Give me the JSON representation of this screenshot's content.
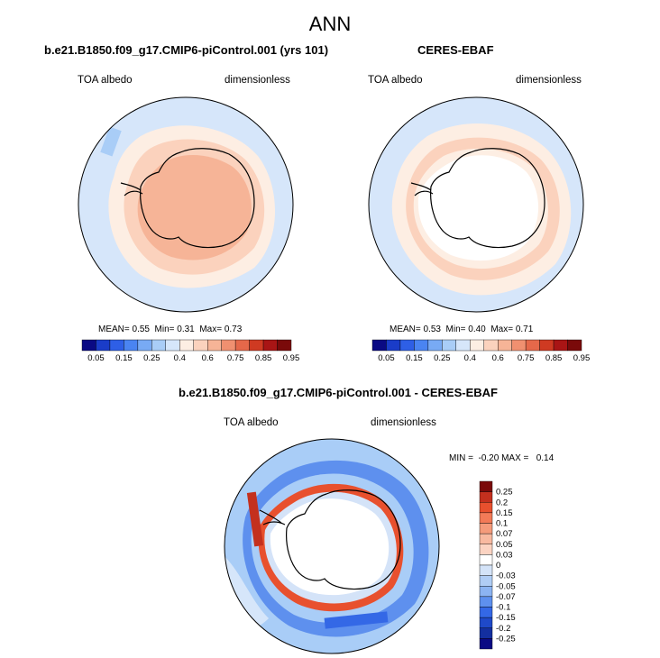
{
  "figure": {
    "title": "ANN"
  },
  "panels": [
    {
      "id": "model",
      "title": "b.e21.B1850.f09_g17.CMIP6-piControl.001 (yrs 101)",
      "left_label": "TOA albedo",
      "right_label": "dimensionless",
      "stats": {
        "mean_label": "MEAN=",
        "mean": "0.55",
        "min_label": "Min=",
        "min": "0.31",
        "max_label": "Max=",
        "max": "0.73"
      }
    },
    {
      "id": "obs",
      "title": "CERES-EBAF",
      "left_label": "TOA albedo",
      "right_label": "dimensionless",
      "stats": {
        "mean_label": "MEAN=",
        "mean": "0.53",
        "min_label": "Min=",
        "min": "0.40",
        "max_label": "Max=",
        "max": "0.71"
      }
    },
    {
      "id": "diff",
      "title": "b.e21.B1850.f09_g17.CMIP6-piControl.001 - CERES-EBAF",
      "left_label": "TOA albedo",
      "right_label": "dimensionless",
      "stats_text": "MIN =  -0.20 MAX =   0.14"
    }
  ],
  "colorbars": {
    "absolute": {
      "colors": [
        "#0a0a84",
        "#1a3cc8",
        "#2e5fe6",
        "#4a84f2",
        "#78aaf4",
        "#a9cdf7",
        "#d6e6fa",
        "#fdeee3",
        "#fbd2bd",
        "#f6b497",
        "#f09070",
        "#e5684a",
        "#cf3a22",
        "#a91515",
        "#7a0a0a"
      ],
      "tick_labels": [
        "0.05",
        "0.15",
        "0.25",
        "0.4",
        "0.6",
        "0.75",
        "0.85",
        "0.95"
      ]
    },
    "difference": {
      "colors": [
        "#7a0a0a",
        "#c4301e",
        "#e8502e",
        "#f37a57",
        "#f59b7b",
        "#f8b9a0",
        "#fbd3c2",
        "#ffffff",
        "#d4e3f8",
        "#b0cdf5",
        "#8cb4f2",
        "#5e90ee",
        "#3468e6",
        "#1f49c9",
        "#132fa0",
        "#0a0a84"
      ],
      "tick_labels": [
        "0.25",
        "0.2",
        "0.15",
        "0.1",
        "0.07",
        "0.05",
        "0.03",
        "0",
        "-0.03",
        "-0.05",
        "-0.07",
        "-0.1",
        "-0.15",
        "-0.2",
        "-0.25"
      ]
    }
  },
  "map_colors": {
    "ocean_light": "#d6e6fa",
    "ocean_mid": "#a9cdf7",
    "albedo_pale": "#fdeee3",
    "albedo_light": "#fbd2bd",
    "albedo_mid": "#f6b497",
    "albedo_strong": "#f09070",
    "land_blank": "#ffffff"
  }
}
